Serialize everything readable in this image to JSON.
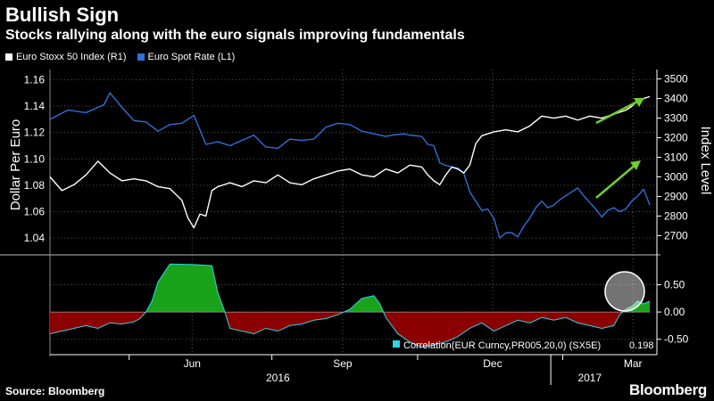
{
  "header": {
    "title": "Bullish Sign",
    "subtitle": "Stocks rallying along with the euro signals improving fundamentals"
  },
  "legend": {
    "items": [
      {
        "label": "Euro Stoxx 50 Index (R1)",
        "color": "#ffffff"
      },
      {
        "label": "Euro Spot Rate (L1)",
        "color": "#2f6fd6"
      }
    ]
  },
  "footer": {
    "source": "Source: Bloomberg",
    "brand": "Bloomberg"
  },
  "chart_data": [
    {
      "type": "line",
      "title": "Bullish Sign",
      "x_range": [
        "2016-03-31",
        "2017-03-17"
      ],
      "ylabel_left": "Dollar Per Euro",
      "ylabel_right": "Index Level",
      "ylim_left": [
        1.03,
        1.165
      ],
      "ylim_right": [
        2620,
        3530
      ],
      "left_ticks": [
        "1.04",
        "1.06",
        "1.08",
        "1.10",
        "1.12",
        "1.14",
        "1.16"
      ],
      "right_ticks": [
        "2700",
        "2800",
        "2900",
        "3000",
        "3100",
        "3200",
        "3300",
        "3400",
        "3500"
      ],
      "series": [
        {
          "name": "Euro Spot Rate (L1)",
          "axis": "left",
          "color": "#2f6fd6",
          "points": [
            [
              0,
              1.13
            ],
            [
              0.03,
              1.137
            ],
            [
              0.06,
              1.135
            ],
            [
              0.09,
              1.141
            ],
            [
              0.1,
              1.15
            ],
            [
              0.12,
              1.139
            ],
            [
              0.14,
              1.129
            ],
            [
              0.16,
              1.128
            ],
            [
              0.18,
              1.121
            ],
            [
              0.2,
              1.126
            ],
            [
              0.22,
              1.127
            ],
            [
              0.24,
              1.133
            ],
            [
              0.26,
              1.111
            ],
            [
              0.28,
              1.113
            ],
            [
              0.3,
              1.11
            ],
            [
              0.32,
              1.114
            ],
            [
              0.34,
              1.118
            ],
            [
              0.36,
              1.109
            ],
            [
              0.38,
              1.108
            ],
            [
              0.4,
              1.115
            ],
            [
              0.42,
              1.114
            ],
            [
              0.44,
              1.115
            ],
            [
              0.46,
              1.124
            ],
            [
              0.48,
              1.127
            ],
            [
              0.5,
              1.126
            ],
            [
              0.52,
              1.121
            ],
            [
              0.54,
              1.119
            ],
            [
              0.56,
              1.117
            ],
            [
              0.57,
              1.118
            ],
            [
              0.59,
              1.119
            ],
            [
              0.6,
              1.118
            ],
            [
              0.62,
              1.117
            ],
            [
              0.63,
              1.111
            ],
            [
              0.64,
              1.11
            ],
            [
              0.65,
              1.097
            ],
            [
              0.66,
              1.095
            ],
            [
              0.67,
              1.094
            ],
            [
              0.68,
              1.093
            ],
            [
              0.69,
              1.089
            ],
            [
              0.7,
              1.075
            ],
            [
              0.71,
              1.068
            ],
            [
              0.72,
              1.061
            ],
            [
              0.73,
              1.062
            ],
            [
              0.74,
              1.055
            ],
            [
              0.75,
              1.04
            ],
            [
              0.76,
              1.044
            ],
            [
              0.77,
              1.044
            ],
            [
              0.78,
              1.041
            ],
            [
              0.79,
              1.049
            ],
            [
              0.8,
              1.055
            ],
            [
              0.81,
              1.063
            ],
            [
              0.82,
              1.068
            ],
            [
              0.83,
              1.063
            ],
            [
              0.84,
              1.065
            ],
            [
              0.85,
              1.069
            ],
            [
              0.86,
              1.072
            ],
            [
              0.87,
              1.075
            ],
            [
              0.88,
              1.078
            ],
            [
              0.89,
              1.072
            ],
            [
              0.9,
              1.067
            ],
            [
              0.91,
              1.062
            ],
            [
              0.92,
              1.056
            ],
            [
              0.93,
              1.061
            ],
            [
              0.94,
              1.063
            ],
            [
              0.95,
              1.06
            ],
            [
              0.96,
              1.062
            ],
            [
              0.97,
              1.068
            ],
            [
              0.98,
              1.072
            ],
            [
              0.99,
              1.077
            ],
            [
              1.0,
              1.065
            ]
          ]
        },
        {
          "name": "Euro Stoxx 50 Index (R1)",
          "axis": "right",
          "color": "#ffffff",
          "points": [
            [
              0,
              3000
            ],
            [
              0.02,
              2930
            ],
            [
              0.04,
              2960
            ],
            [
              0.06,
              3010
            ],
            [
              0.08,
              3080
            ],
            [
              0.09,
              3050
            ],
            [
              0.1,
              3020
            ],
            [
              0.12,
              2980
            ],
            [
              0.14,
              2990
            ],
            [
              0.16,
              2980
            ],
            [
              0.18,
              2950
            ],
            [
              0.2,
              2940
            ],
            [
              0.22,
              2880
            ],
            [
              0.23,
              2790
            ],
            [
              0.24,
              2740
            ],
            [
              0.25,
              2810
            ],
            [
              0.26,
              2800
            ],
            [
              0.27,
              2930
            ],
            [
              0.28,
              2950
            ],
            [
              0.3,
              2970
            ],
            [
              0.32,
              2950
            ],
            [
              0.34,
              2980
            ],
            [
              0.36,
              2970
            ],
            [
              0.38,
              3010
            ],
            [
              0.4,
              2970
            ],
            [
              0.42,
              2960
            ],
            [
              0.44,
              2990
            ],
            [
              0.46,
              3010
            ],
            [
              0.48,
              3030
            ],
            [
              0.5,
              3040
            ],
            [
              0.52,
              3010
            ],
            [
              0.54,
              3000
            ],
            [
              0.56,
              3040
            ],
            [
              0.58,
              3020
            ],
            [
              0.6,
              3060
            ],
            [
              0.62,
              3050
            ],
            [
              0.63,
              3010
            ],
            [
              0.64,
              2980
            ],
            [
              0.65,
              2960
            ],
            [
              0.66,
              3010
            ],
            [
              0.67,
              3050
            ],
            [
              0.68,
              3040
            ],
            [
              0.69,
              3020
            ],
            [
              0.7,
              3060
            ],
            [
              0.71,
              3170
            ],
            [
              0.72,
              3210
            ],
            [
              0.74,
              3230
            ],
            [
              0.76,
              3240
            ],
            [
              0.78,
              3230
            ],
            [
              0.8,
              3260
            ],
            [
              0.82,
              3310
            ],
            [
              0.84,
              3300
            ],
            [
              0.86,
              3310
            ],
            [
              0.88,
              3290
            ],
            [
              0.9,
              3310
            ],
            [
              0.92,
              3300
            ],
            [
              0.94,
              3320
            ],
            [
              0.96,
              3340
            ],
            [
              0.97,
              3360
            ],
            [
              0.98,
              3390
            ],
            [
              0.99,
              3400
            ],
            [
              1.0,
              3410
            ]
          ]
        }
      ],
      "annotations": [
        "green arrow (up-right)",
        "green arrow (up-right)"
      ]
    },
    {
      "type": "area",
      "ylim": [
        -0.75,
        0.95
      ],
      "ticks": [
        "0.50",
        "0.00",
        "-0.50"
      ],
      "label": "Correlation(EUR Curncy,PR005,20,0) (SX5E)",
      "last_value": "0.198",
      "positive_color": "#1aa31a",
      "negative_color": "#8b0000",
      "points": [
        [
          0,
          -0.4
        ],
        [
          0.02,
          -0.35
        ],
        [
          0.04,
          -0.3
        ],
        [
          0.06,
          -0.25
        ],
        [
          0.08,
          -0.3
        ],
        [
          0.1,
          -0.2
        ],
        [
          0.12,
          -0.22
        ],
        [
          0.14,
          -0.18
        ],
        [
          0.15,
          -0.12
        ],
        [
          0.16,
          0.0
        ],
        [
          0.17,
          0.2
        ],
        [
          0.18,
          0.55
        ],
        [
          0.2,
          0.88
        ],
        [
          0.24,
          0.87
        ],
        [
          0.27,
          0.85
        ],
        [
          0.28,
          0.35
        ],
        [
          0.29,
          0.05
        ],
        [
          0.3,
          -0.3
        ],
        [
          0.32,
          -0.35
        ],
        [
          0.34,
          -0.4
        ],
        [
          0.36,
          -0.3
        ],
        [
          0.38,
          -0.35
        ],
        [
          0.4,
          -0.25
        ],
        [
          0.42,
          -0.22
        ],
        [
          0.44,
          -0.15
        ],
        [
          0.46,
          -0.12
        ],
        [
          0.48,
          -0.05
        ],
        [
          0.5,
          0.05
        ],
        [
          0.52,
          0.25
        ],
        [
          0.54,
          0.3
        ],
        [
          0.55,
          0.15
        ],
        [
          0.56,
          -0.1
        ],
        [
          0.58,
          -0.4
        ],
        [
          0.6,
          -0.55
        ],
        [
          0.62,
          -0.65
        ],
        [
          0.64,
          -0.6
        ],
        [
          0.66,
          -0.55
        ],
        [
          0.68,
          -0.45
        ],
        [
          0.7,
          -0.3
        ],
        [
          0.72,
          -0.2
        ],
        [
          0.74,
          -0.35
        ],
        [
          0.76,
          -0.25
        ],
        [
          0.78,
          -0.15
        ],
        [
          0.8,
          -0.2
        ],
        [
          0.82,
          -0.1
        ],
        [
          0.84,
          -0.15
        ],
        [
          0.86,
          -0.1
        ],
        [
          0.88,
          -0.2
        ],
        [
          0.9,
          -0.25
        ],
        [
          0.92,
          -0.3
        ],
        [
          0.94,
          -0.25
        ],
        [
          0.95,
          -0.05
        ],
        [
          0.96,
          0.05
        ],
        [
          0.97,
          0.1
        ],
        [
          0.98,
          0.2
        ],
        [
          0.99,
          0.15
        ],
        [
          1.0,
          0.2
        ]
      ]
    }
  ],
  "x_axis": {
    "months": [
      {
        "label": "Jun",
        "pos": 0.237
      },
      {
        "label": "Sep",
        "pos": 0.488
      },
      {
        "label": "Dec",
        "pos": 0.738
      },
      {
        "label": "Mar",
        "pos": 0.972
      }
    ],
    "years": [
      {
        "label": "2016",
        "pos": 0.38
      },
      {
        "label": "2017",
        "pos": 0.9
      }
    ]
  }
}
